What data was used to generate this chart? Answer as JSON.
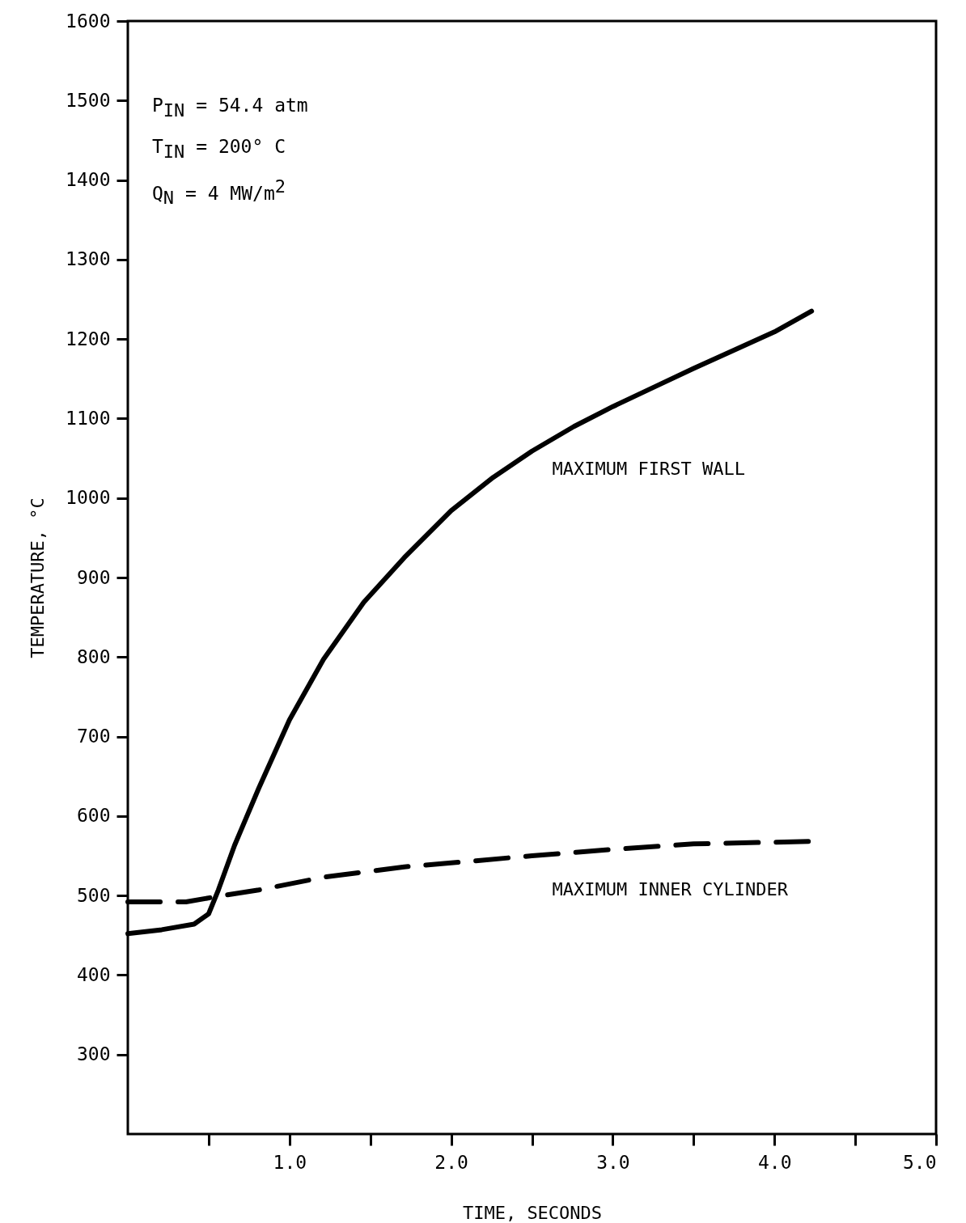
{
  "chart_data": {
    "type": "line",
    "xlabel": "TIME, SECONDS",
    "ylabel": "TEMPERATURE, °C",
    "annotations": [
      "P$_{IN}$ = 54.4 atm",
      "T$_{IN}$ = 200° C",
      "Q$_{N}$ = 4 MW/m$^{2}$"
    ],
    "xlim": [
      0,
      5
    ],
    "ylim": [
      200,
      1600
    ],
    "xticks": [
      {
        "value": 0.5,
        "label": null
      },
      {
        "value": 1,
        "label": "1.0"
      },
      {
        "value": 1.5,
        "label": null
      },
      {
        "value": 2,
        "label": "2.0"
      },
      {
        "value": 2.5,
        "label": null
      },
      {
        "value": 3,
        "label": "3.0"
      },
      {
        "value": 3.5,
        "label": null
      },
      {
        "value": 4,
        "label": "4.0"
      },
      {
        "value": 4.5,
        "label": null
      },
      {
        "value": 5,
        "label": "5.0"
      }
    ],
    "yticks": [
      300,
      400,
      500,
      600,
      700,
      800,
      900,
      1000,
      1100,
      1200,
      1300,
      1400,
      1500,
      1600
    ],
    "grid": false,
    "marker": "none",
    "series": [
      {
        "name": "MAXIMUM FIRST WALL",
        "color": "#000000",
        "line_style": "solid",
        "x": [
          0,
          0.21,
          0.41,
          0.5,
          0.56,
          0.66,
          0.81,
          1.0,
          1.21,
          1.46,
          1.71,
          2.0,
          2.26,
          2.5,
          2.76,
          3.0,
          3.26,
          3.5,
          3.76,
          4.0,
          4.23
        ],
        "values": [
          452,
          457,
          464,
          477,
          507,
          563,
          635,
          721,
          797,
          869,
          925,
          984,
          1026,
          1059,
          1090,
          1115,
          1140,
          1163,
          1187,
          1209,
          1235
        ]
      },
      {
        "name": "MAXIMUM INNER CYLINDER",
        "color": "#000000",
        "line_style": "dashed",
        "x": [
          0,
          0.36,
          0.56,
          0.81,
          1.21,
          1.71,
          2.0,
          2.5,
          3.0,
          3.5,
          4.21
        ],
        "values": [
          492,
          492,
          499,
          507,
          523,
          536,
          541,
          550,
          558,
          565,
          568
        ]
      }
    ]
  }
}
